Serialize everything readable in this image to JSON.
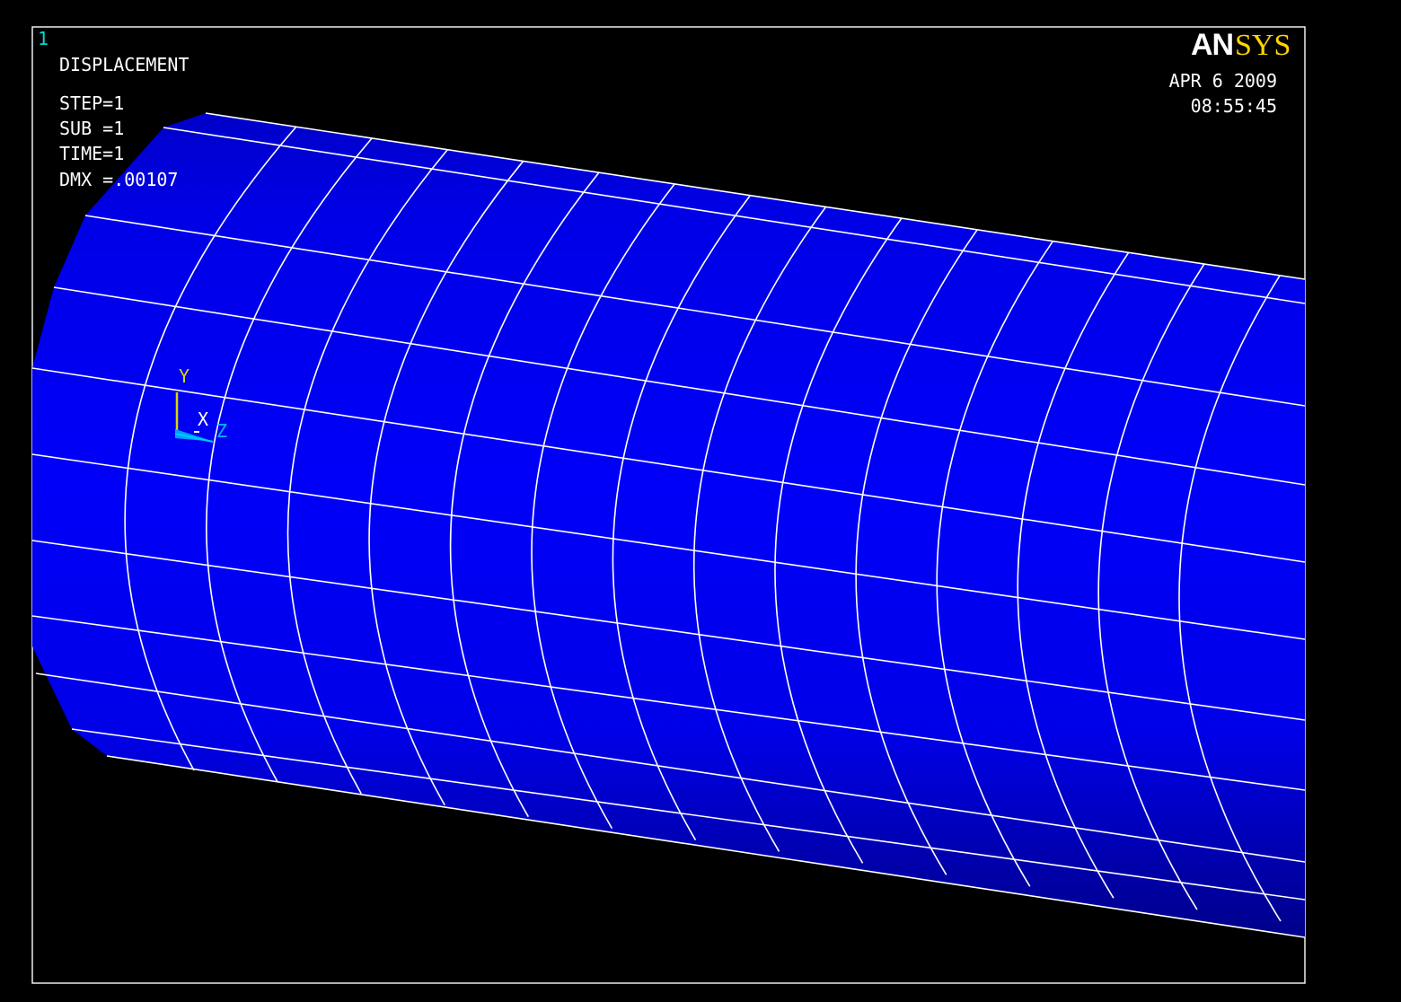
{
  "window": {
    "number": "1"
  },
  "header": {
    "result_type": "DISPLACEMENT",
    "step": "STEP=1",
    "sub": "SUB =1",
    "time": "TIME=1",
    "dmx": "DMX =.00107"
  },
  "logo": {
    "bold_part": "AN",
    "serif_part": "SYS"
  },
  "timestamp": {
    "date": "APR  6 2009",
    "time": "08:55:45"
  },
  "triad": {
    "y_label": "Y",
    "x_label": "X",
    "z_label": "Z"
  },
  "colors": {
    "background": "#000000",
    "surface": "#0000ee",
    "mesh_lines": "#ffffff",
    "window_number": "#00d8d8",
    "logo_accent": "#ffd400",
    "triad_y": "#d8d800",
    "triad_z": "#00b0ff"
  }
}
